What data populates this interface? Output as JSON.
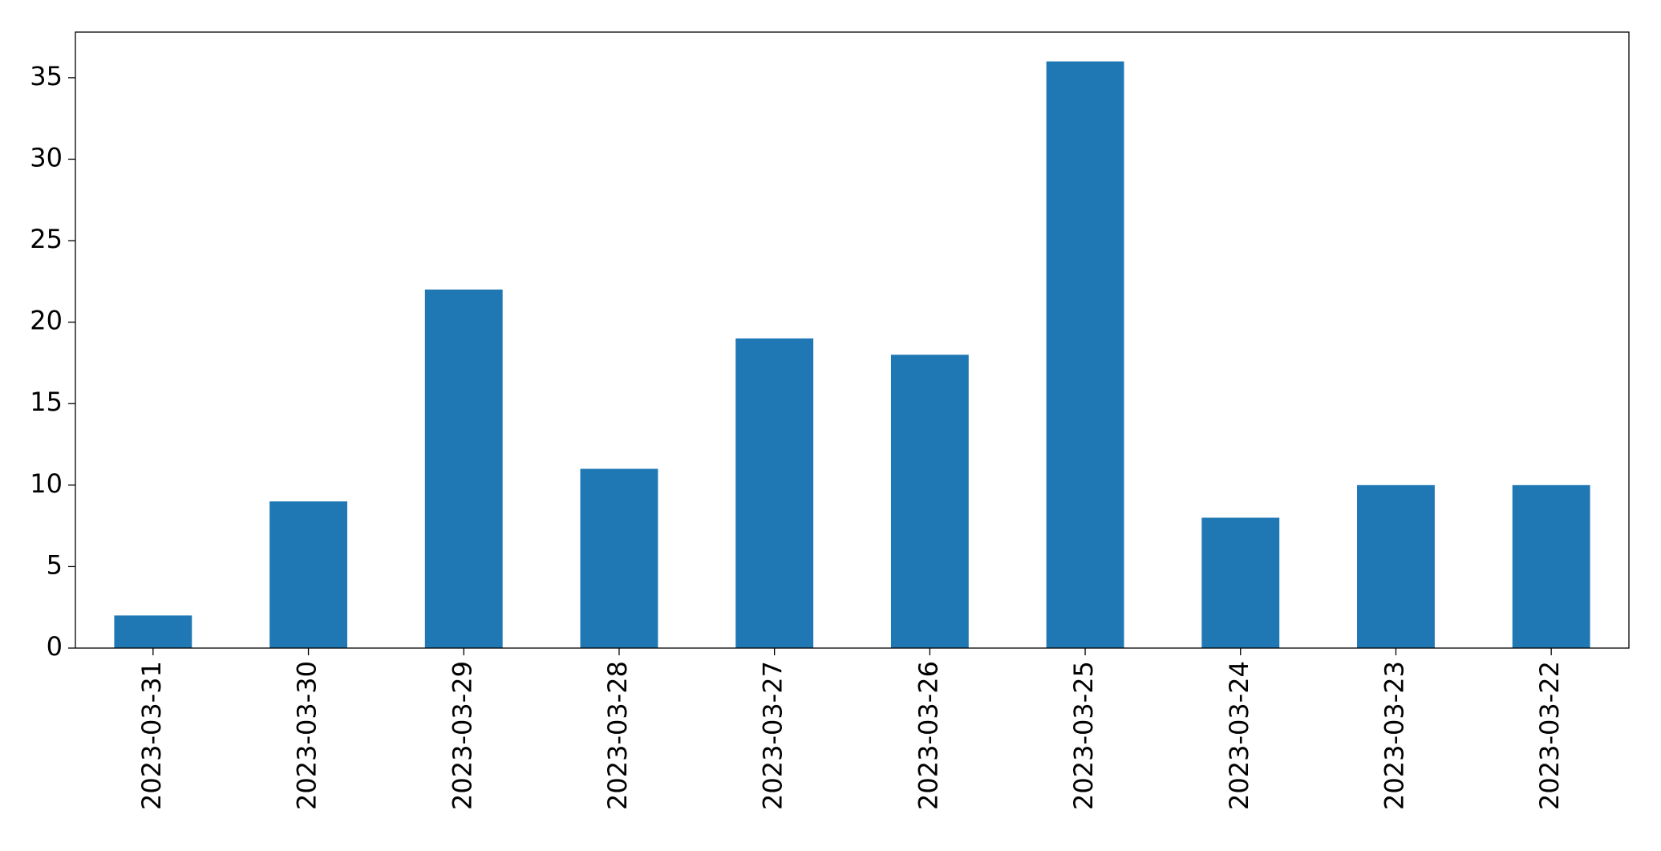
{
  "chart_data": {
    "type": "bar",
    "categories": [
      "2023-03-31",
      "2023-03-30",
      "2023-03-29",
      "2023-03-28",
      "2023-03-27",
      "2023-03-26",
      "2023-03-25",
      "2023-03-24",
      "2023-03-23",
      "2023-03-22"
    ],
    "values": [
      2,
      9,
      22,
      11,
      19,
      18,
      36,
      8,
      10,
      10
    ],
    "color": "#1f77b4",
    "ylim": [
      0,
      37.8
    ],
    "yticks": [
      0,
      5,
      10,
      15,
      20,
      25,
      30,
      35
    ],
    "grid": false
  }
}
